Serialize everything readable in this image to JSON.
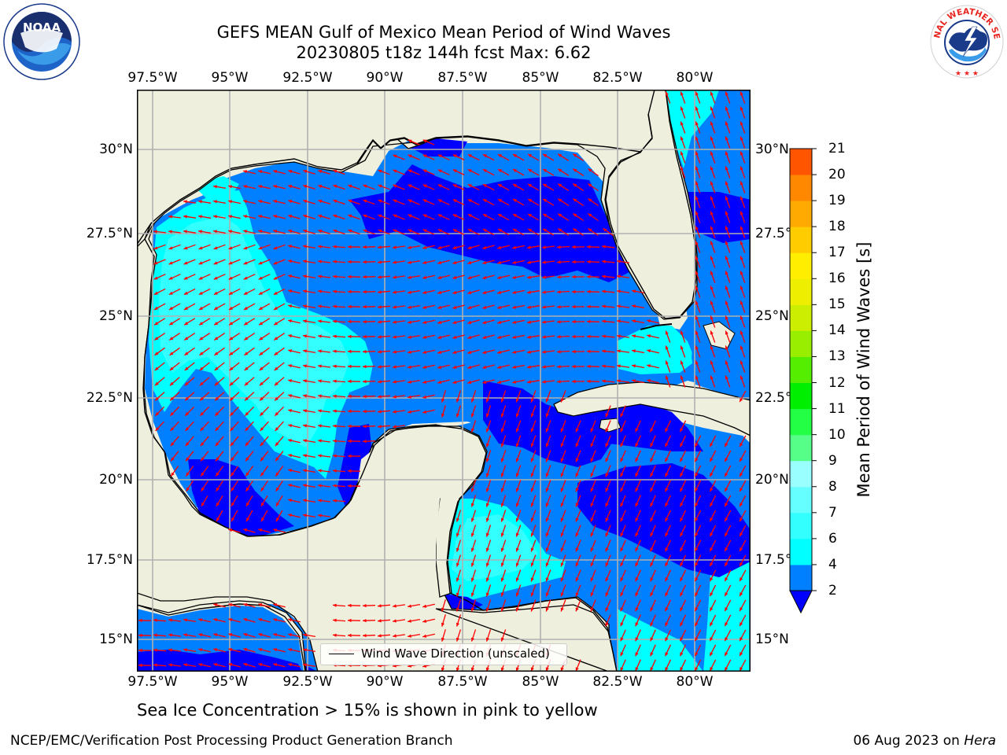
{
  "title": {
    "line1": "GEFS MEAN Gulf of Mexico Mean Period of Wind Waves",
    "line2": "20230805 t18z 144h fcst   Max: 6.62"
  },
  "axes": {
    "lon_ticks": [
      "97.5°W",
      "95°W",
      "92.5°W",
      "90°W",
      "87.5°W",
      "85°W",
      "82.5°W",
      "80°W"
    ],
    "lat_ticks": [
      "30°N",
      "27.5°N",
      "25°N",
      "22.5°N",
      "20°N",
      "17.5°N",
      "15°N"
    ]
  },
  "colorbar": {
    "label": "Mean Period of Wind Waves [s]",
    "ticks": [
      "2",
      "4",
      "6",
      "7",
      "8",
      "9",
      "10",
      "11",
      "12",
      "13",
      "14",
      "15",
      "16",
      "17",
      "18",
      "19",
      "20",
      "21"
    ],
    "colors": [
      "#0080ff",
      "#00ffff",
      "#33ffff",
      "#66ffff",
      "#99ffff",
      "#55ff88",
      "#22ff44",
      "#00ee00",
      "#55ee00",
      "#99ee00",
      "#ccee00",
      "#eeee00",
      "#ffee00",
      "#ffcc00",
      "#ffaa00",
      "#ff8800",
      "#ff5500",
      "#ff2200",
      "#ff0000"
    ],
    "extend_color": "#0000ff"
  },
  "legend": {
    "text": "Wind Wave Direction (unscaled)"
  },
  "caption": "Sea Ice Concentration > 15% is shown in pink to yellow",
  "footer": {
    "left": "NCEP/EMC/Verification Post Processing Product Generation Branch",
    "date": "06 Aug 2023 on ",
    "machine": "Hera"
  },
  "logos": {
    "left": "NOAA",
    "right": "NATIONAL WEATHER SERVICE"
  },
  "colors": {
    "land": "#efefde",
    "band_lt2": "#0000ff",
    "band_2_4": "#0080ff",
    "band_4_6": "#00ffff",
    "band_6_7": "#33ffff",
    "arrow": "#ff0000"
  }
}
